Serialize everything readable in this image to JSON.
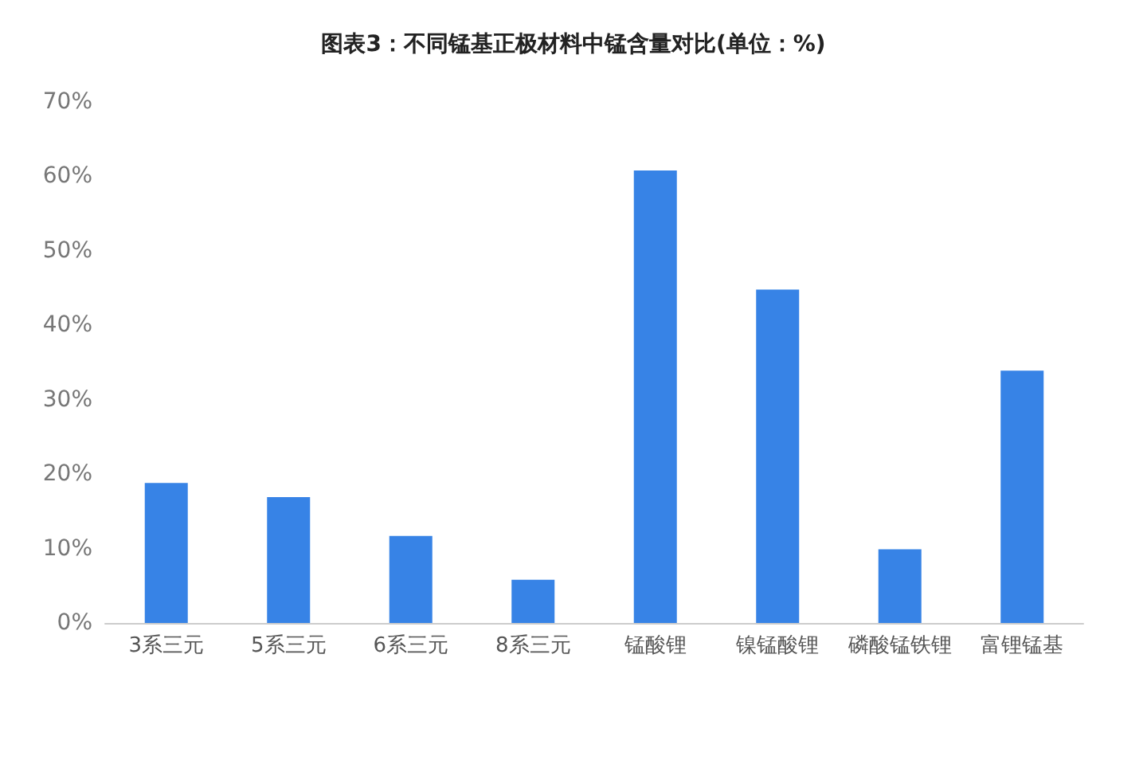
{
  "chart_data": {
    "type": "bar",
    "title": "图表3：不同锰基正极材料中锰含量对比(单位：%)",
    "categories": [
      "3系三元",
      "5系三元",
      "6系三元",
      "8系三元",
      "锰酸锂",
      "镍锰酸锂",
      "磷酸锰铁锂",
      "富锂锰基"
    ],
    "values": [
      18.8,
      16.9,
      11.7,
      5.8,
      60.8,
      44.8,
      9.9,
      33.9
    ],
    "color": "#3783e6",
    "ylim": [
      0,
      70
    ],
    "yticks": [
      {
        "value": 0,
        "label": "0%"
      },
      {
        "value": 10,
        "label": "10%"
      },
      {
        "value": 20,
        "label": "20%"
      },
      {
        "value": 30,
        "label": "30%"
      },
      {
        "value": 40,
        "label": "40%"
      },
      {
        "value": 50,
        "label": "50%"
      },
      {
        "value": 60,
        "label": "60%"
      },
      {
        "value": 70,
        "label": "70%"
      }
    ],
    "grid": false
  }
}
